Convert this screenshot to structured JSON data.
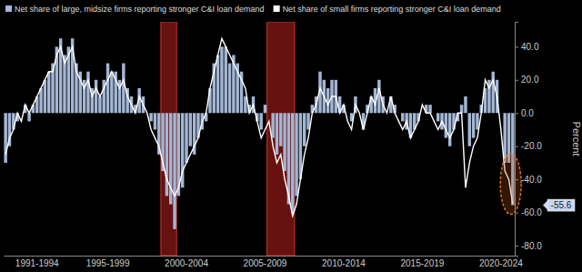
{
  "chart_data": {
    "type": "bar",
    "categories": [
      null,
      null,
      null,
      null,
      null,
      null,
      null,
      null,
      "1991-1994",
      null,
      null,
      null,
      null,
      null,
      null,
      null,
      null,
      null,
      null,
      null,
      null,
      null,
      null,
      null,
      null,
      null,
      "1995-1999",
      null,
      null,
      null,
      null,
      null,
      null,
      null,
      null,
      null,
      null,
      null,
      null,
      null,
      null,
      null,
      null,
      null,
      null,
      null,
      "2000-2004",
      null,
      null,
      null,
      null,
      null,
      null,
      null,
      null,
      null,
      null,
      null,
      null,
      null,
      null,
      null,
      null,
      null,
      null,
      null,
      "2005-2009",
      null,
      null,
      null,
      null,
      null,
      null,
      null,
      null,
      null,
      null,
      null,
      null,
      null,
      null,
      null,
      null,
      null,
      null,
      null,
      "2010-2014",
      null,
      null,
      null,
      null,
      null,
      null,
      null,
      null,
      null,
      null,
      null,
      null,
      null,
      null,
      null,
      null,
      null,
      null,
      null,
      "2015-2019",
      null,
      null,
      null,
      null,
      null,
      null,
      null,
      null,
      null,
      null,
      null,
      null,
      null,
      null,
      null,
      null,
      null,
      null,
      null,
      "2020-2024",
      null,
      null,
      null
    ],
    "series": [
      {
        "name": "Net share of large, midsize firms reporting stronger C&I loan demand",
        "color": "#a3b6d4",
        "type": "bar",
        "values": [
          -30,
          -20,
          -10,
          -5,
          0,
          5,
          -5,
          5,
          10,
          15,
          20,
          25,
          30,
          40,
          45,
          35,
          40,
          45,
          30,
          25,
          20,
          25,
          15,
          20,
          10,
          20,
          30,
          25,
          25,
          20,
          30,
          15,
          10,
          5,
          15,
          10,
          0,
          -5,
          -10,
          -25,
          -35,
          -50,
          -55,
          -70,
          -50,
          -45,
          -30,
          -20,
          -25,
          -15,
          -10,
          -5,
          15,
          30,
          35,
          40,
          40,
          30,
          35,
          30,
          25,
          10,
          5,
          10,
          -5,
          -10,
          5,
          0,
          -15,
          -25,
          -20,
          -35,
          -55,
          -60,
          -50,
          -40,
          -20,
          -10,
          5,
          10,
          25,
          20,
          15,
          20,
          20,
          10,
          5,
          0,
          -5,
          10,
          0,
          -10,
          5,
          10,
          15,
          20,
          10,
          0,
          10,
          5,
          0,
          -5,
          -10,
          -15,
          -10,
          -5,
          0,
          5,
          5,
          0,
          -5,
          -10,
          -15,
          -20,
          -10,
          -5,
          5,
          10,
          -20,
          -15,
          -10,
          5,
          15,
          20,
          25,
          20,
          0,
          -30,
          -30,
          -55.6
        ]
      },
      {
        "name": "Net share of small firms reporting stronger C&I loan demand",
        "color": "#ffffff",
        "type": "line",
        "values": [
          -25,
          -15,
          -10,
          0,
          -5,
          5,
          0,
          5,
          10,
          15,
          20,
          25,
          25,
          35,
          40,
          30,
          35,
          40,
          25,
          20,
          15,
          20,
          10,
          15,
          10,
          15,
          20,
          25,
          20,
          15,
          20,
          10,
          5,
          0,
          10,
          5,
          0,
          -10,
          -15,
          -20,
          -30,
          -40,
          -45,
          -50,
          -45,
          -35,
          -30,
          -25,
          -20,
          -15,
          -5,
          0,
          15,
          25,
          35,
          45,
          40,
          35,
          30,
          25,
          20,
          15,
          0,
          5,
          -5,
          -15,
          -10,
          -5,
          -20,
          -30,
          -25,
          -40,
          -50,
          -62,
          -55,
          -40,
          -25,
          -15,
          0,
          5,
          15,
          10,
          5,
          10,
          10,
          0,
          5,
          -5,
          -10,
          5,
          0,
          -10,
          0,
          10,
          5,
          15,
          5,
          0,
          10,
          0,
          -5,
          -10,
          -5,
          -15,
          -10,
          -5,
          5,
          0,
          0,
          -5,
          -10,
          -5,
          -10,
          -15,
          -10,
          0,
          0,
          -45,
          -30,
          -20,
          -15,
          0,
          20,
          15,
          20,
          10,
          -10,
          -35,
          -40,
          -55
        ]
      }
    ],
    "ylim": [
      -86,
      55
    ],
    "yticks": [
      {
        "value": 40,
        "label": "40.0"
      },
      {
        "value": 20,
        "label": "20.0"
      },
      {
        "value": 0,
        "label": "0.0"
      },
      {
        "value": -20,
        "label": "-20.0"
      },
      {
        "value": -40,
        "label": "-40.0"
      },
      {
        "value": -60,
        "label": "-60.0"
      },
      {
        "value": -80,
        "label": "-80.0"
      }
    ],
    "y_label": "Percent",
    "annotations": [
      {
        "value": -55.6,
        "label": "-55.6"
      }
    ],
    "shaded_ranges": [
      {
        "start": 40,
        "end": 43
      },
      {
        "start": 67,
        "end": 73
      }
    ],
    "grid": false,
    "legend": "top"
  }
}
